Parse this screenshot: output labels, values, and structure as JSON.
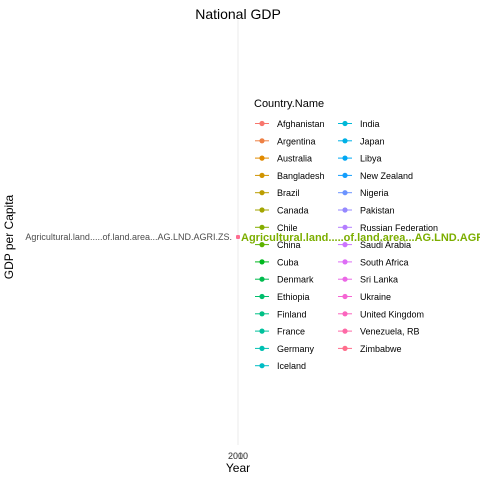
{
  "chart_data": {
    "type": "line",
    "title": "National GDP",
    "xlabel": "Year",
    "ylabel": "GDP per Capita",
    "x_ticks": [
      "2000",
      "2010"
    ],
    "y_tick": "Agricultural.land.....of.land.area...AG.LND.AGRI.ZS.",
    "point_label": "Agricultural.land.....of.land.area...AG.LND.AGRI.ZS.",
    "point_label_color": "#7CAE00",
    "legend_title": "Country.Name",
    "legend_position": "right",
    "grid": true,
    "series": [
      {
        "name": "Afghanistan",
        "color": "#F8766D"
      },
      {
        "name": "Argentina",
        "color": "#EE8044"
      },
      {
        "name": "Australia",
        "color": "#E18A00"
      },
      {
        "name": "Bangladesh",
        "color": "#D09400"
      },
      {
        "name": "Brazil",
        "color": "#BB9D00"
      },
      {
        "name": "Canada",
        "color": "#A3A500"
      },
      {
        "name": "Chile",
        "color": "#85AD00"
      },
      {
        "name": "China",
        "color": "#5DB300"
      },
      {
        "name": "Cuba",
        "color": "#00B81F"
      },
      {
        "name": "Denmark",
        "color": "#00BB4E"
      },
      {
        "name": "Ethiopia",
        "color": "#00BE6C"
      },
      {
        "name": "Finland",
        "color": "#00C085"
      },
      {
        "name": "France",
        "color": "#00C19C"
      },
      {
        "name": "Germany",
        "color": "#00C0B2"
      },
      {
        "name": "Iceland",
        "color": "#00BDC5"
      },
      {
        "name": "India",
        "color": "#00B8D7"
      },
      {
        "name": "Japan",
        "color": "#00B1E6"
      },
      {
        "name": "Libya",
        "color": "#00A8F4"
      },
      {
        "name": "New Zealand",
        "color": "#149EFC"
      },
      {
        "name": "Nigeria",
        "color": "#6B93FF"
      },
      {
        "name": "Pakistan",
        "color": "#9588FF"
      },
      {
        "name": "Russian Federation",
        "color": "#B47EFF"
      },
      {
        "name": "Saudi Arabia",
        "color": "#CB74FF"
      },
      {
        "name": "South Africa",
        "color": "#DD6DF5"
      },
      {
        "name": "Sri Lanka",
        "color": "#EB68E6"
      },
      {
        "name": "Ukraine",
        "color": "#F566D3"
      },
      {
        "name": "United Kingdom",
        "color": "#FB65BE"
      },
      {
        "name": "Venezuela, RB",
        "color": "#FE69A6"
      },
      {
        "name": "Zimbabwe",
        "color": "#FF6E8C"
      }
    ]
  }
}
